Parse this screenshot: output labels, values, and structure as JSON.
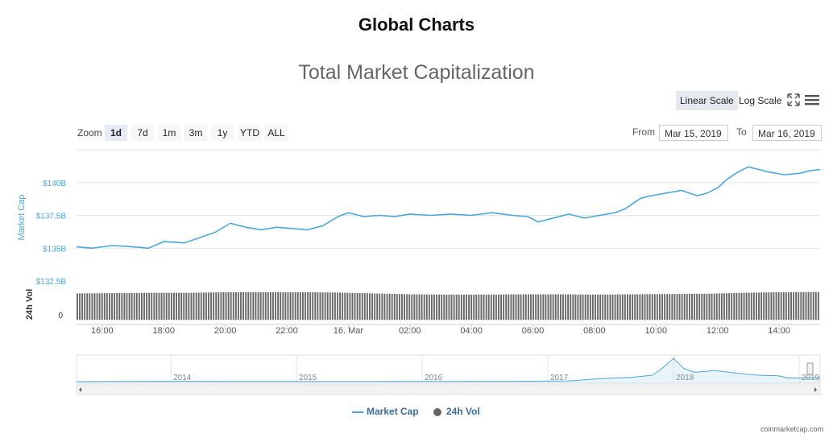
{
  "header": {
    "title": "Global Charts"
  },
  "toolbar": {
    "linear_scale": "Linear Scale",
    "log_scale": "Log Scale",
    "fullscreen_icon": "expand-arrows-icon",
    "menu_icon": "hamburger-menu-icon"
  },
  "zoom": {
    "label": "Zoom",
    "buttons": [
      "1d",
      "7d",
      "1m",
      "3m",
      "1y",
      "YTD",
      "ALL"
    ],
    "active": "1d"
  },
  "range": {
    "from_label": "From",
    "from_value": "Mar 15, 2019",
    "to_label": "To",
    "to_value": "Mar 16, 2019"
  },
  "legend": [
    {
      "label": "Market Cap",
      "color": "#4aa8d8"
    },
    {
      "label": "24h Vol",
      "color": "#666666"
    }
  ],
  "credit": "coinmarketcap.com",
  "colors": {
    "market_cap": "#4aa8d8",
    "volume": "#666666"
  },
  "chart_data": [
    {
      "type": "line",
      "title": "Total Market Capitalization",
      "ylabel": "Market Cap",
      "yunit": "billion USD",
      "ylim": [
        132.5,
        142.5
      ],
      "yticks": [
        132.5,
        135,
        137.5,
        140
      ],
      "ytick_labels": [
        "$132.5B",
        "$135B",
        "$137.5B",
        "$140B"
      ],
      "xlim": [
        "2019-03-15 15:10",
        "2019-03-16 15:20"
      ],
      "xticks": [
        "2019-03-15 16:00",
        "2019-03-15 18:00",
        "2019-03-15 20:00",
        "2019-03-15 22:00",
        "2019-03-16 00:00",
        "2019-03-16 02:00",
        "2019-03-16 04:00",
        "2019-03-16 06:00",
        "2019-03-16 08:00",
        "2019-03-16 10:00",
        "2019-03-16 12:00",
        "2019-03-16 14:00"
      ],
      "xtick_labels": [
        "16:00",
        "18:00",
        "20:00",
        "22:00",
        "16. Mar",
        "02:00",
        "04:00",
        "06:00",
        "08:00",
        "10:00",
        "12:00",
        "14:00"
      ],
      "series": [
        {
          "name": "Market Cap",
          "x": [
            "2019-03-15 15:10",
            "2019-03-15 15:40",
            "2019-03-15 16:20",
            "2019-03-15 17:00",
            "2019-03-15 17:30",
            "2019-03-15 18:00",
            "2019-03-15 18:40",
            "2019-03-15 19:10",
            "2019-03-15 19:40",
            "2019-03-15 20:10",
            "2019-03-15 20:40",
            "2019-03-15 21:10",
            "2019-03-15 21:40",
            "2019-03-15 22:10",
            "2019-03-15 22:40",
            "2019-03-15 23:10",
            "2019-03-15 23:40",
            "2019-03-16 00:00",
            "2019-03-16 00:30",
            "2019-03-16 01:00",
            "2019-03-16 01:30",
            "2019-03-16 02:00",
            "2019-03-16 02:40",
            "2019-03-16 03:20",
            "2019-03-16 04:00",
            "2019-03-16 04:40",
            "2019-03-16 05:20",
            "2019-03-16 05:50",
            "2019-03-16 06:10",
            "2019-03-16 06:40",
            "2019-03-16 07:10",
            "2019-03-16 07:40",
            "2019-03-16 08:10",
            "2019-03-16 08:40",
            "2019-03-16 09:00",
            "2019-03-16 09:30",
            "2019-03-16 09:50",
            "2019-03-16 10:20",
            "2019-03-16 10:50",
            "2019-03-16 11:20",
            "2019-03-16 11:40",
            "2019-03-16 12:00",
            "2019-03-16 12:20",
            "2019-03-16 12:40",
            "2019-03-16 13:00",
            "2019-03-16 13:20",
            "2019-03-16 13:40",
            "2019-03-16 14:10",
            "2019-03-16 14:40",
            "2019-03-16 15:00",
            "2019-03-16 15:20"
          ],
          "values": [
            135.1,
            135.0,
            135.2,
            135.1,
            135.0,
            135.5,
            135.4,
            135.8,
            136.2,
            136.9,
            136.6,
            136.4,
            136.6,
            136.5,
            136.4,
            136.7,
            137.4,
            137.7,
            137.4,
            137.5,
            137.4,
            137.6,
            137.5,
            137.6,
            137.5,
            137.7,
            137.5,
            137.4,
            137.0,
            137.3,
            137.6,
            137.3,
            137.5,
            137.7,
            138.0,
            138.8,
            139.0,
            139.2,
            139.4,
            139.0,
            139.2,
            139.6,
            140.3,
            140.8,
            141.2,
            141.0,
            140.8,
            140.6,
            140.7,
            140.9,
            141.0
          ]
        }
      ]
    },
    {
      "type": "bar",
      "ylabel": "24h Vol",
      "yticks": [
        0
      ],
      "ytick_labels": [
        "0"
      ],
      "ylim": [
        0,
        1
      ],
      "x_range": [
        "2019-03-15 15:10",
        "2019-03-16 15:20"
      ],
      "series": [
        {
          "name": "24h Vol",
          "relative_values": [
            0.88,
            0.89,
            0.9,
            0.9,
            0.92,
            0.92,
            0.92,
            0.91,
            0.88,
            0.85,
            0.84,
            0.84,
            0.85,
            0.85,
            0.84,
            0.85,
            0.86,
            0.87,
            0.9,
            0.92,
            0.93
          ]
        }
      ]
    },
    {
      "type": "area",
      "role": "navigator",
      "xlim": [
        "2013-04",
        "2019-03"
      ],
      "xtick_labels": [
        "2014",
        "2015",
        "2016",
        "2017",
        "2018",
        "2019"
      ],
      "series": [
        {
          "name": "Market Cap",
          "x": [
            "2013-04",
            "2013-11",
            "2014-06",
            "2015-01",
            "2015-08",
            "2016-03",
            "2016-10",
            "2017-03",
            "2017-06",
            "2017-09",
            "2017-11",
            "2017-12",
            "2018-01",
            "2018-02",
            "2018-03",
            "2018-05",
            "2018-07",
            "2018-09",
            "2018-11",
            "2018-12",
            "2019-03"
          ],
          "values": [
            1,
            10,
            8,
            5,
            4,
            7,
            12,
            25,
            100,
            150,
            220,
            480,
            800,
            450,
            320,
            380,
            290,
            220,
            200,
            120,
            135
          ]
        }
      ]
    }
  ]
}
